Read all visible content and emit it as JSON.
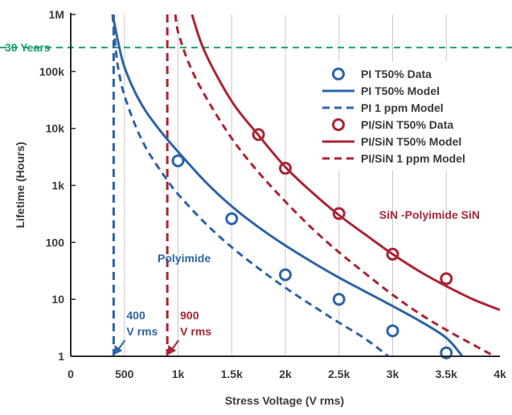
{
  "colors": {
    "pi": "#2e64a8",
    "pisin": "#ab2535",
    "years": "#1aa06e",
    "grid": "#c8c8c8",
    "axis": "#2b2b2b",
    "text": "#3a3a3a"
  },
  "chart_data": {
    "type": "scatter",
    "title": "",
    "xlabel": "Stress Voltage (V rms)",
    "ylabel": "Lifetime (Hours)",
    "xlim": [
      0,
      4000
    ],
    "ylim": [
      1,
      1000000
    ],
    "yscale": "log",
    "grid": "vertical",
    "legend_position": "top-right",
    "x_ticks": [
      {
        "value": 0,
        "label": "0"
      },
      {
        "value": 500,
        "label": "500"
      },
      {
        "value": 1000,
        "label": "1k"
      },
      {
        "value": 1500,
        "label": "1.5k"
      },
      {
        "value": 2000,
        "label": "2k"
      },
      {
        "value": 2500,
        "label": "2.5k"
      },
      {
        "value": 3000,
        "label": "3k"
      },
      {
        "value": 3500,
        "label": "3.5k"
      },
      {
        "value": 4000,
        "label": "4k"
      }
    ],
    "y_ticks": [
      {
        "value": 1,
        "label": "1"
      },
      {
        "value": 10,
        "label": "10"
      },
      {
        "value": 100,
        "label": "100"
      },
      {
        "value": 1000,
        "label": "1k"
      },
      {
        "value": 10000,
        "label": "10k"
      },
      {
        "value": 100000,
        "label": "100k"
      },
      {
        "value": 1000000,
        "label": "1M"
      }
    ],
    "series": [
      {
        "name": "PI T50% Data",
        "kind": "points",
        "color_key": "pi",
        "x": [
          1000,
          1500,
          2000,
          2500,
          3000,
          3500
        ],
        "y": [
          2700,
          260,
          27,
          10,
          2.8,
          1.15
        ]
      },
      {
        "name": "PI T50% Model",
        "kind": "line",
        "style": "solid",
        "color_key": "pi",
        "x": [
          390,
          450,
          500,
          600,
          700,
          800,
          900,
          1000,
          1250,
          1500,
          1750,
          2000,
          2250,
          2500,
          2750,
          3000,
          3250,
          3500,
          3650
        ],
        "y": [
          1000000,
          280000,
          120000,
          43000,
          20000,
          11000,
          6400,
          3900,
          1180,
          430,
          185,
          88,
          45,
          24,
          13.5,
          7.6,
          4.2,
          2.1,
          1
        ]
      },
      {
        "name": "PI 1 ppm Model",
        "kind": "line",
        "style": "dashed",
        "color_key": "pi",
        "x": [
          390,
          425,
          450,
          500,
          600,
          700,
          800,
          900,
          1000,
          1250,
          1500,
          1750,
          2000,
          2250,
          2500,
          2750,
          2960
        ],
        "y": [
          1000000,
          200000,
          95000,
          38000,
          11500,
          4600,
          2300,
          1230,
          700,
          220,
          82,
          35,
          16,
          7.8,
          3.9,
          2,
          1
        ]
      },
      {
        "name": "PI/SiN T50% Data",
        "kind": "points",
        "color_key": "pisin",
        "x": [
          1750,
          2000,
          2500,
          3000,
          3500
        ],
        "y": [
          7800,
          2000,
          320,
          62,
          23
        ]
      },
      {
        "name": "PI/SiN T50% Model",
        "kind": "line",
        "style": "solid",
        "color_key": "pisin",
        "x": [
          1130,
          1250,
          1500,
          1750,
          2000,
          2250,
          2500,
          2750,
          3000,
          3250,
          3500,
          3750,
          4000
        ],
        "y": [
          1000000,
          220000,
          30000,
          7600,
          2100,
          750,
          300,
          135,
          62,
          31,
          17,
          10,
          6.5
        ]
      },
      {
        "name": "PI/SiN 1 ppm Model",
        "kind": "line",
        "style": "dashed",
        "color_key": "pisin",
        "x": [
          975,
          1000,
          1100,
          1250,
          1500,
          1750,
          2000,
          2250,
          2500,
          2750,
          3000,
          3250,
          3500,
          3750,
          3950
        ],
        "y": [
          1000000,
          500000,
          140000,
          38000,
          6700,
          1700,
          520,
          175,
          67,
          28,
          12,
          5.6,
          2.9,
          1.6,
          1
        ]
      }
    ],
    "reference_lines": [
      {
        "kind": "horizontal",
        "y": 263000,
        "label": "30 Years",
        "color_key": "years"
      },
      {
        "kind": "vertical",
        "x": 400,
        "label_line1": "400",
        "label_line2": "V rms",
        "color_key": "pi"
      },
      {
        "kind": "vertical",
        "x": 900,
        "label_line1": "900",
        "label_line2": "V rms",
        "color_key": "pisin"
      }
    ],
    "annotations": [
      {
        "text": "Polyimide",
        "color_key": "pi"
      },
      {
        "text": "SiN -Polyimide SiN",
        "color_key": "pisin"
      }
    ],
    "legend": [
      {
        "label": "PI T50% Data",
        "marker": "circle",
        "color_key": "pi"
      },
      {
        "label": "PI T50% Model",
        "marker": "solid",
        "color_key": "pi"
      },
      {
        "label": "PI 1 ppm Model",
        "marker": "dashed",
        "color_key": "pi"
      },
      {
        "label": "PI/SiN T50% Data",
        "marker": "circle",
        "color_key": "pisin"
      },
      {
        "label": "PI/SiN T50% Model",
        "marker": "solid",
        "color_key": "pisin"
      },
      {
        "label": "PI/SiN 1 ppm Model",
        "marker": "dashed",
        "color_key": "pisin"
      }
    ]
  }
}
